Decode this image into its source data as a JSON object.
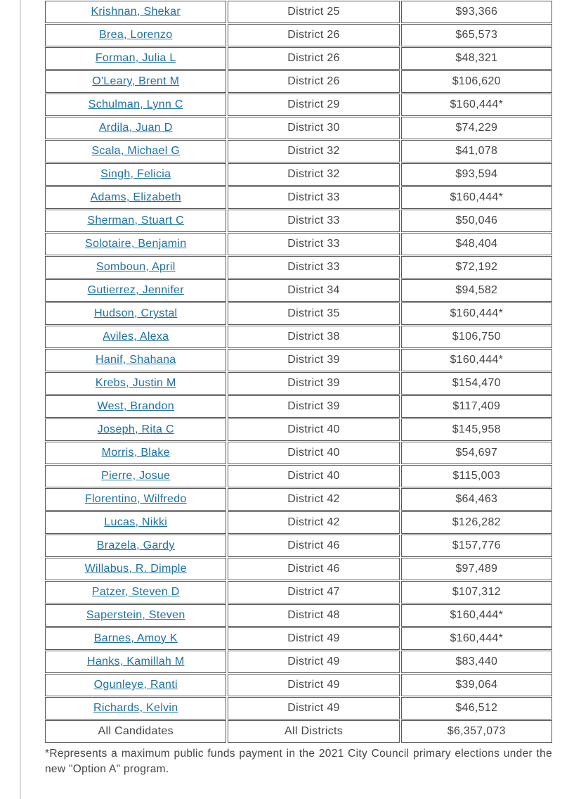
{
  "rows": [
    {
      "name": "Krishnan, Shekar",
      "district": "District 25",
      "amount": "$93,366",
      "link": true
    },
    {
      "name": "Brea, Lorenzo",
      "district": "District 26",
      "amount": "$65,573",
      "link": true
    },
    {
      "name": "Forman, Julia L",
      "district": "District 26",
      "amount": "$48,321",
      "link": true
    },
    {
      "name": "O'Leary, Brent M",
      "district": "District 26",
      "amount": "$106,620",
      "link": true
    },
    {
      "name": "Schulman, Lynn C",
      "district": "District 29",
      "amount": "$160,444*",
      "link": true
    },
    {
      "name": "Ardila, Juan D",
      "district": "District 30",
      "amount": "$74,229",
      "link": true
    },
    {
      "name": "Scala, Michael G",
      "district": "District 32",
      "amount": "$41,078",
      "link": true
    },
    {
      "name": "Singh, Felicia",
      "district": "District 32",
      "amount": "$93,594",
      "link": true
    },
    {
      "name": "Adams, Elizabeth",
      "district": "District 33",
      "amount": "$160,444*",
      "link": true
    },
    {
      "name": "Sherman, Stuart C",
      "district": "District 33",
      "amount": "$50,046",
      "link": true
    },
    {
      "name": "Solotaire, Benjamin",
      "district": "District 33",
      "amount": "$48,404",
      "link": true
    },
    {
      "name": "Somboun, April",
      "district": "District 33",
      "amount": "$72,192",
      "link": true
    },
    {
      "name": "Gutierrez, Jennifer",
      "district": "District 34",
      "amount": "$94,582",
      "link": true
    },
    {
      "name": "Hudson, Crystal",
      "district": "District 35",
      "amount": "$160,444*",
      "link": true
    },
    {
      "name": "Aviles, Alexa",
      "district": "District 38",
      "amount": "$106,750",
      "link": true
    },
    {
      "name": "Hanif, Shahana",
      "district": "District 39",
      "amount": "$160,444*",
      "link": true
    },
    {
      "name": "Krebs, Justin M",
      "district": "District 39",
      "amount": "$154,470",
      "link": true
    },
    {
      "name": "West, Brandon",
      "district": "District 39",
      "amount": "$117,409",
      "link": true
    },
    {
      "name": "Joseph, Rita C",
      "district": "District 40",
      "amount": "$145,958",
      "link": true
    },
    {
      "name": "Morris, Blake",
      "district": "District 40",
      "amount": "$54,697",
      "link": true
    },
    {
      "name": "Pierre, Josue",
      "district": "District 40",
      "amount": "$115,003",
      "link": true
    },
    {
      "name": "Florentino, Wilfredo",
      "district": "District 42",
      "amount": "$64,463",
      "link": true
    },
    {
      "name": "Lucas, Nikki",
      "district": "District 42",
      "amount": "$126,282",
      "link": true
    },
    {
      "name": "Brazela, Gardy",
      "district": "District 46",
      "amount": "$157,776",
      "link": true
    },
    {
      "name": "Willabus, R. Dimple",
      "district": "District 46",
      "amount": "$97,489",
      "link": true
    },
    {
      "name": "Patzer, Steven D",
      "district": "District 47",
      "amount": "$107,312",
      "link": true
    },
    {
      "name": "Saperstein, Steven",
      "district": "District 48",
      "amount": "$160,444*",
      "link": true
    },
    {
      "name": "Barnes, Amoy K",
      "district": "District 49",
      "amount": "$160,444*",
      "link": true
    },
    {
      "name": "Hanks, Kamillah M",
      "district": "District 49",
      "amount": "$83,440",
      "link": true
    },
    {
      "name": "Ogunleye, Ranti",
      "district": "District 49",
      "amount": "$39,064",
      "link": true
    },
    {
      "name": "Richards, Kelvin",
      "district": "District 49",
      "amount": "$46,512",
      "link": true
    },
    {
      "name": "All Candidates",
      "district": "All Districts",
      "amount": "$6,357,073",
      "link": false
    }
  ],
  "footnote": "*Represents a maximum public funds payment in the 2021 City Council primary elections under the new \"Option A\" program."
}
